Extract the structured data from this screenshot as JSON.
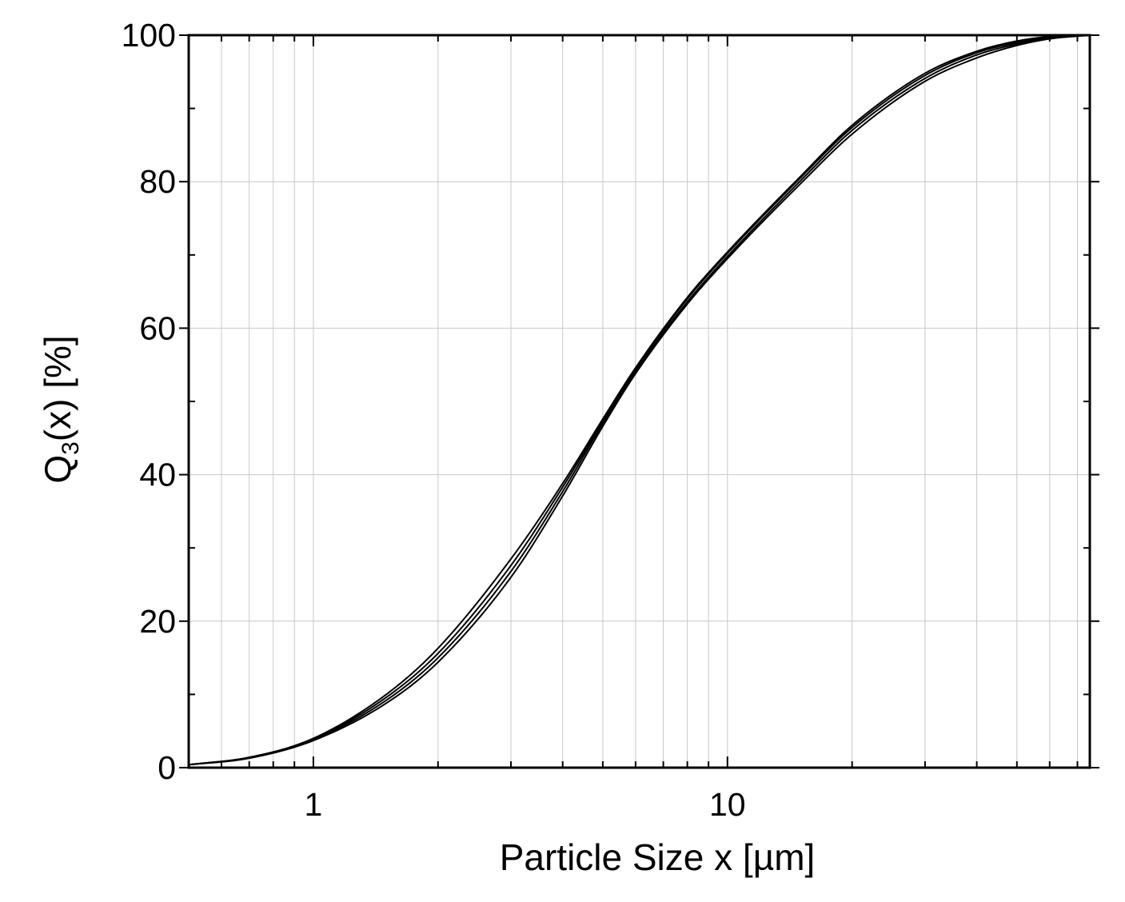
{
  "chart_data": {
    "type": "line",
    "title": "",
    "xlabel": "Particle Size x [µm]",
    "ylabel_main": "Q",
    "ylabel_sub": "3",
    "ylabel_rest": "(x) [%]",
    "xscale": "log",
    "xlim": [
      0.5,
      75
    ],
    "ylim": [
      0,
      100
    ],
    "grid": true,
    "legend": "none",
    "x_tick_labels": [
      "1",
      "10"
    ],
    "x_ticks": [
      1,
      10
    ],
    "y_tick_labels": [
      "0",
      "20",
      "40",
      "60",
      "80",
      "100"
    ],
    "y_ticks": [
      0,
      20,
      40,
      60,
      80,
      100
    ],
    "line_color": "#000000",
    "grid_color": "#c8c8c8",
    "series": [
      {
        "x": [
          0.5,
          0.7,
          1,
          1.5,
          2,
          3,
          4,
          5,
          6,
          8,
          10,
          15,
          20,
          30,
          40,
          50,
          60,
          75
        ],
        "values": [
          0.4,
          1.4,
          4.0,
          10.0,
          16.3,
          28.5,
          38.8,
          47.6,
          54.6,
          64.2,
          70.4,
          80.7,
          87.7,
          94.8,
          97.8,
          99.2,
          99.8,
          100
        ]
      },
      {
        "x": [
          0.5,
          0.7,
          1,
          1.5,
          2,
          3,
          4,
          5,
          6,
          8,
          10,
          15,
          20,
          30,
          40,
          50,
          60,
          75
        ],
        "values": [
          0.4,
          1.4,
          3.9,
          9.6,
          15.6,
          27.6,
          38.3,
          47.3,
          54.4,
          64.0,
          70.2,
          80.5,
          87.4,
          94.5,
          97.6,
          99.0,
          99.7,
          100
        ]
      },
      {
        "x": [
          0.5,
          0.7,
          1,
          1.5,
          2,
          3,
          4,
          5,
          6,
          8,
          10,
          15,
          20,
          30,
          40,
          50,
          60,
          75
        ],
        "values": [
          0.4,
          1.3,
          3.8,
          9.2,
          15.0,
          26.8,
          37.7,
          47.0,
          54.1,
          63.6,
          69.8,
          80.1,
          87.0,
          94.1,
          97.3,
          98.8,
          99.6,
          100
        ]
      },
      {
        "x": [
          0.5,
          0.7,
          1,
          1.5,
          2,
          3,
          4,
          5,
          6,
          8,
          10,
          15,
          20,
          30,
          40,
          50,
          60,
          75
        ],
        "values": [
          0.4,
          1.3,
          3.7,
          8.8,
          14.4,
          26.0,
          37.1,
          46.6,
          53.8,
          63.3,
          69.5,
          79.7,
          86.5,
          93.7,
          96.9,
          98.6,
          99.5,
          100
        ]
      }
    ]
  }
}
